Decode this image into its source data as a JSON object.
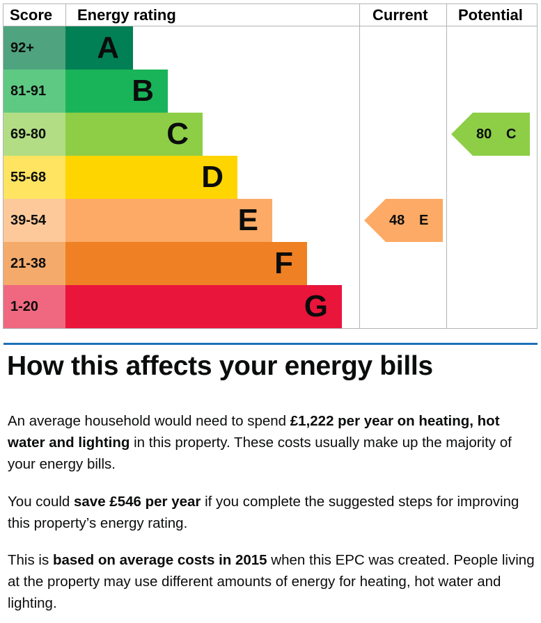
{
  "chart": {
    "headers": {
      "score": "Score",
      "rating": "Energy rating",
      "current": "Current",
      "potential": "Potential"
    },
    "bands": [
      {
        "score": "92+",
        "letter": "A",
        "color": "#008054",
        "score_bg": "#4fa37e"
      },
      {
        "score": "81-91",
        "letter": "B",
        "color": "#19b459",
        "score_bg": "#5ec983"
      },
      {
        "score": "69-80",
        "letter": "C",
        "color": "#8dce46",
        "score_bg": "#b2dd84"
      },
      {
        "score": "55-68",
        "letter": "D",
        "color": "#ffd500",
        "score_bg": "#ffe461"
      },
      {
        "score": "39-54",
        "letter": "E",
        "color": "#fcaa65",
        "score_bg": "#fdc99b"
      },
      {
        "score": "21-38",
        "letter": "F",
        "color": "#ef8023",
        "score_bg": "#f4aa6b"
      },
      {
        "score": "1-20",
        "letter": "G",
        "color": "#e9153b",
        "score_bg": "#f06880"
      }
    ],
    "current": {
      "value": "48",
      "letter": "E",
      "color": "#fcaa65"
    },
    "potential": {
      "value": "80",
      "letter": "C",
      "color": "#8dce46"
    }
  },
  "section": {
    "title": "How this affects your energy bills",
    "p1": {
      "t1": "An average household would need to spend ",
      "b1": "£1,222 per year on heating, hot water and lighting",
      "t2": " in this property. These costs usually make up the majority of your energy bills."
    },
    "p2": {
      "t1": "You could ",
      "b1": "save £546 per year",
      "t2": " if you complete the suggested steps for improving this property’s energy rating."
    },
    "p3": {
      "t1": "This is ",
      "b1": "based on average costs in 2015",
      "t2": " when this EPC was created. People living at the property may use different amounts of energy for heating, hot water and lighting."
    }
  }
}
